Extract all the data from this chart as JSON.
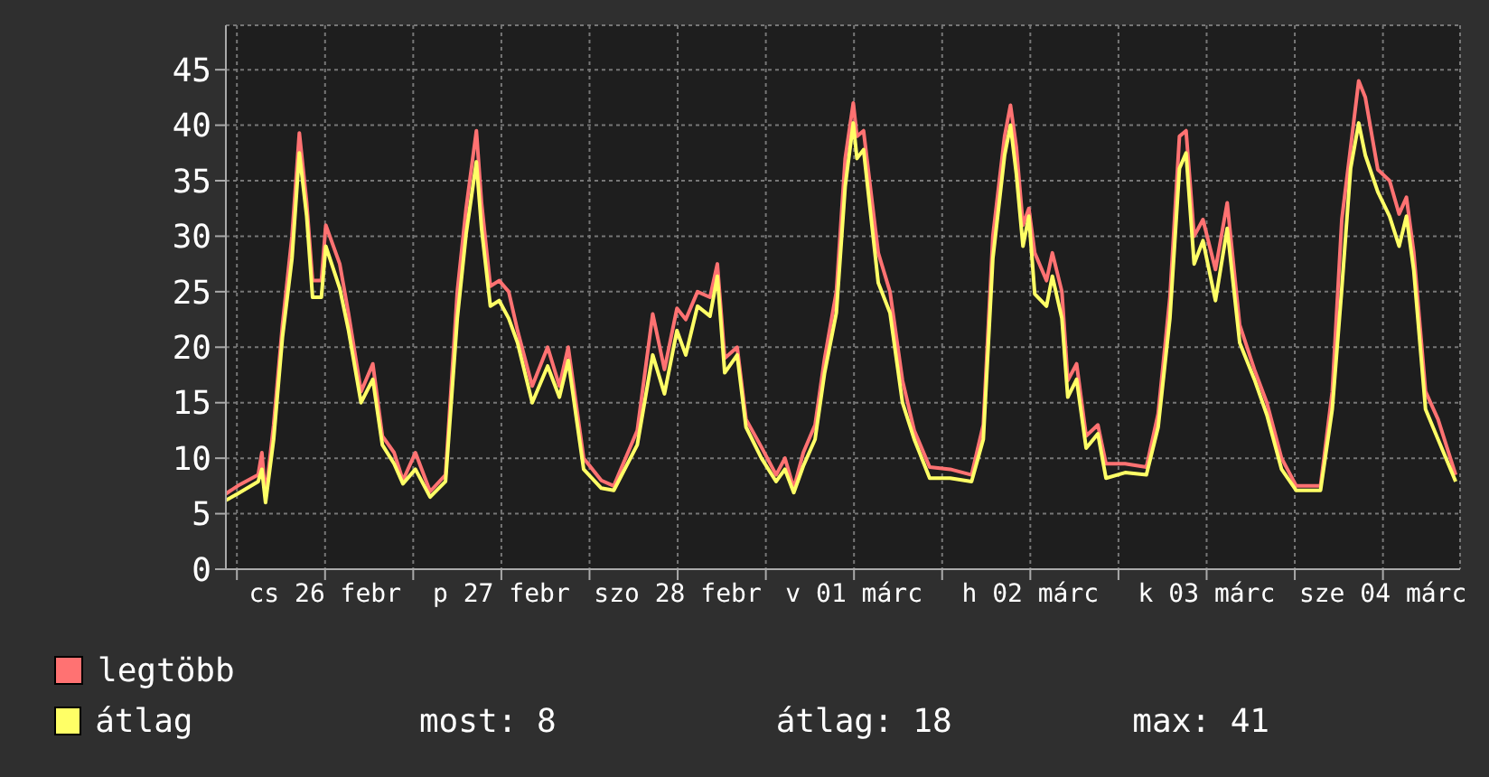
{
  "chart_data": {
    "type": "line",
    "x": [
      "--02-25T22:30",
      "--02-26T00:06",
      "--02-26T02:54",
      "--02-26T03:24",
      "--02-26T03:54",
      "--02-26T05:00",
      "--02-26T06:12",
      "--02-26T07:30",
      "--02-26T08:30",
      "--02-26T09:30",
      "--02-26T10:18",
      "--02-26T11:30",
      "--02-26T12:06",
      "--02-26T14:00",
      "--02-26T15:12",
      "--02-26T16:54",
      "--02-26T18:30",
      "--02-26T19:48",
      "--02-26T21:24",
      "--02-26T22:36",
      "--02-27T00:18",
      "--02-27T02:18",
      "--02-27T04:24",
      "--02-27T06:00",
      "--02-27T07:12",
      "--02-27T08:36",
      "--02-27T09:18",
      "--02-27T10:30",
      "--02-27T11:42",
      "--02-27T13:00",
      "--02-27T14:12",
      "--02-27T16:12",
      "--02-27T18:18",
      "--02-27T19:54",
      "--02-27T21:06",
      "--02-27T23:12",
      "--02-28T01:36",
      "--02-28T03:18",
      "--02-28T06:30",
      "--02-28T08:36",
      "--02-28T10:12",
      "--02-28T11:54",
      "--02-28T13:06",
      "--02-28T14:42",
      "--02-28T16:24",
      "--02-28T17:24",
      "--02-28T18:24",
      "--02-28T20:06",
      "--02-28T21:18",
      "--02-28T23:24",
      "--03-01T01:24",
      "--03-01T02:36",
      "--03-01T03:48",
      "--03-01T05:06",
      "--03-01T06:42",
      "--03-01T08:00",
      "--03-01T09:36",
      "--03-01T10:48",
      "--03-01T11:54",
      "--03-01T12:24",
      "--03-01T13:18",
      "--03-01T15:18",
      "--03-01T16:54",
      "--03-01T18:36",
      "--03-01T20:12",
      "--03-01T22:18",
      "--03-02T01:06",
      "--03-02T04:00",
      "--03-02T05:36",
      "--03-02T06:54",
      "--03-02T08:30",
      "--03-02T09:18",
      "--03-02T10:06",
      "--03-02T11:00",
      "--03-02T11:48",
      "--03-02T12:36",
      "--03-02T14:12",
      "--03-02T15:00",
      "--03-02T16:18",
      "--03-02T17:06",
      "--03-02T18:18",
      "--03-02T19:36",
      "--03-02T21:12",
      "--03-02T22:18",
      "--03-03T00:54",
      "--03-03T03:48",
      "--03-03T05:24",
      "--03-03T07:00",
      "--03-03T08:18",
      "--03-03T09:12",
      "--03-03T10:18",
      "--03-03T11:30",
      "--03-03T13:12",
      "--03-03T14:48",
      "--03-03T16:30",
      "--03-03T18:30",
      "--03-03T20:12",
      "--03-03T22:12",
      "--03-04T00:12",
      "--03-04T03:30",
      "--03-04T05:06",
      "--03-04T06:24",
      "--03-04T07:36",
      "--03-04T08:42",
      "--03-04T09:36",
      "--03-04T11:18",
      "--03-04T12:54",
      "--03-04T14:12",
      "--03-04T15:12",
      "--03-04T16:12",
      "--03-04T17:48",
      "--03-04T19:30",
      "--03-04T21:54"
    ],
    "series": [
      {
        "name": "legtöbb",
        "color": "#ff7272",
        "values": [
          6.8,
          7.5,
          8.5,
          10.5,
          6.5,
          13,
          22,
          30,
          39.3,
          33,
          26,
          26,
          31,
          27.5,
          23,
          16,
          18.5,
          12,
          10.5,
          8,
          10.5,
          7,
          8.5,
          25,
          32.5,
          39.5,
          33,
          25.5,
          26,
          25,
          21.5,
          16.5,
          20,
          16.5,
          20,
          10,
          8,
          7.5,
          12.5,
          23,
          18,
          23.5,
          22.5,
          25,
          24.5,
          27.5,
          19,
          20,
          13.5,
          11,
          8.5,
          10,
          7.3,
          10.5,
          13,
          19,
          25,
          37,
          42,
          39,
          39.5,
          28.5,
          25,
          17,
          12.5,
          9.2,
          9,
          8.5,
          13,
          30,
          39,
          41.8,
          38,
          31,
          32.5,
          28.5,
          26,
          28.5,
          25,
          17,
          18.5,
          12,
          13,
          9.5,
          9.5,
          9.2,
          14,
          24.5,
          39,
          39.5,
          30,
          31.5,
          27,
          33,
          22,
          18,
          15,
          10,
          7.5,
          7.5,
          16,
          31.5,
          38,
          44,
          42.5,
          36,
          35,
          32,
          33.5,
          28.5,
          16,
          13.5,
          8.5
        ]
      },
      {
        "name": "átlag",
        "color": "#ffff66",
        "values": [
          6.2,
          6.8,
          7.9,
          9.0,
          6.0,
          11.7,
          20.9,
          28,
          37.5,
          31.8,
          24.5,
          24.5,
          29.1,
          25.3,
          21.5,
          15,
          17.1,
          11.2,
          9.5,
          7.7,
          9.0,
          6.5,
          7.9,
          22.6,
          30.2,
          36.7,
          30.7,
          23.7,
          24.2,
          22.6,
          20.4,
          15,
          18.3,
          15.5,
          18.8,
          9.0,
          7.3,
          7.1,
          11.2,
          19.3,
          15.8,
          21.5,
          19.3,
          23.7,
          22.8,
          26.4,
          17.7,
          19.3,
          12.8,
          10.0,
          7.9,
          9.0,
          6.9,
          9.3,
          11.7,
          17.7,
          23.1,
          34.5,
          40.2,
          37.0,
          37.8,
          25.8,
          23.1,
          15.0,
          11.7,
          8.2,
          8.2,
          7.9,
          11.7,
          28.0,
          37.3,
          40.0,
          35.6,
          29.1,
          31.8,
          24.8,
          23.7,
          26.4,
          22.6,
          15.5,
          17.1,
          10.9,
          12.2,
          8.2,
          8.7,
          8.5,
          12.8,
          22.6,
          36.1,
          37.5,
          27.5,
          29.6,
          24.2,
          30.7,
          20.4,
          17.1,
          13.9,
          9.0,
          7.1,
          7.1,
          14.4,
          25.3,
          36.1,
          40.2,
          37.3,
          34.0,
          31.8,
          29.1,
          31.8,
          26.9,
          14.4,
          11.7,
          7.9
        ]
      }
    ],
    "xlim": [
      "--02-25T22:30",
      "--03-04T22:30"
    ],
    "xticks": [
      {
        "value": "--02-26T00:00",
        "label": null
      },
      {
        "value": "--02-26T12:00",
        "label": "cs 26 febr"
      },
      {
        "value": "--02-27T00:00",
        "label": null
      },
      {
        "value": "--02-27T12:00",
        "label": "p 27 febr"
      },
      {
        "value": "--02-28T00:00",
        "label": null
      },
      {
        "value": "--02-28T12:00",
        "label": "szo 28 febr"
      },
      {
        "value": "--03-01T00:00",
        "label": null
      },
      {
        "value": "--03-01T12:00",
        "label": "v 01 márc"
      },
      {
        "value": "--03-02T00:00",
        "label": null
      },
      {
        "value": "--03-02T12:00",
        "label": "h 02 márc"
      },
      {
        "value": "--03-03T00:00",
        "label": null
      },
      {
        "value": "--03-03T12:00",
        "label": "k 03 márc"
      },
      {
        "value": "--03-04T00:00",
        "label": null
      },
      {
        "value": "--03-04T12:00",
        "label": "sze 04 márc"
      }
    ],
    "ylim": [
      0,
      49
    ],
    "yticks": [
      0,
      5,
      10,
      15,
      20,
      25,
      30,
      35,
      40,
      45
    ],
    "grid": true,
    "legend": "bottom left",
    "annotations": [
      "most: 8",
      "átlag: 18",
      "max: 41"
    ]
  }
}
